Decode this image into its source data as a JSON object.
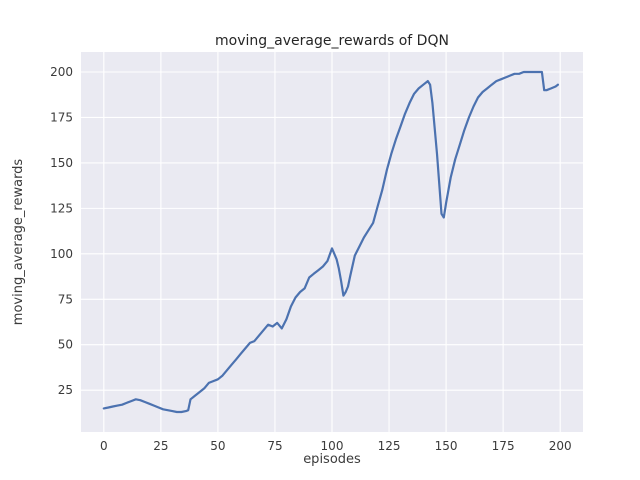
{
  "chart_data": {
    "type": "line",
    "title": "moving_average_rewards of DQN",
    "xlabel": "episodes",
    "ylabel": "moving_average_rewards",
    "xlim": [
      -10,
      210
    ],
    "ylim": [
      2,
      211
    ],
    "xticks": [
      0,
      25,
      50,
      75,
      100,
      125,
      150,
      175,
      200
    ],
    "yticks": [
      25,
      50,
      75,
      100,
      125,
      150,
      175,
      200
    ],
    "grid": true,
    "legend": "none",
    "colors": {
      "line": "#4c72b0",
      "plot_bg": "#eaeaf2",
      "grid": "#ffffff",
      "text": "#262626"
    },
    "series_name": "moving_average_rewards",
    "x": [
      0,
      2,
      4,
      6,
      8,
      10,
      12,
      14,
      16,
      18,
      20,
      22,
      24,
      26,
      28,
      30,
      32,
      34,
      36,
      37,
      38,
      40,
      42,
      44,
      46,
      48,
      50,
      52,
      54,
      56,
      58,
      60,
      62,
      64,
      66,
      68,
      70,
      72,
      74,
      76,
      78,
      80,
      82,
      84,
      86,
      88,
      90,
      92,
      94,
      96,
      98,
      100,
      101,
      102,
      103,
      104,
      105,
      106,
      107,
      108,
      110,
      112,
      114,
      116,
      118,
      120,
      122,
      124,
      126,
      128,
      130,
      132,
      134,
      136,
      138,
      140,
      142,
      143,
      144,
      146,
      148,
      149,
      150,
      152,
      154,
      156,
      158,
      160,
      162,
      164,
      166,
      168,
      170,
      172,
      174,
      176,
      178,
      180,
      182,
      184,
      186,
      188,
      190,
      192,
      193,
      194,
      196,
      198,
      199
    ],
    "y": [
      15,
      15.5,
      16,
      16.5,
      17,
      18,
      19,
      20,
      19.5,
      18.5,
      17.5,
      16.5,
      15.5,
      14.5,
      14,
      13.5,
      13,
      13,
      13.5,
      14,
      20,
      22,
      24,
      26,
      29,
      30,
      31,
      33,
      36,
      39,
      42,
      45,
      48,
      51,
      52,
      55,
      58,
      61,
      60,
      62,
      59,
      64,
      71,
      76,
      79,
      81,
      87,
      89,
      91,
      93,
      96,
      103,
      100,
      97,
      92,
      85,
      77,
      79,
      82,
      88,
      99,
      104,
      109,
      113,
      117,
      126,
      135,
      146,
      155,
      163,
      170,
      177,
      183,
      188,
      191,
      193,
      195,
      193,
      183,
      155,
      122,
      120,
      128,
      142,
      152,
      160,
      168,
      175,
      181,
      186,
      189,
      191,
      193,
      195,
      196,
      197,
      198,
      199,
      199,
      200,
      200,
      200,
      200,
      200,
      190,
      190,
      191,
      192,
      193
    ]
  }
}
